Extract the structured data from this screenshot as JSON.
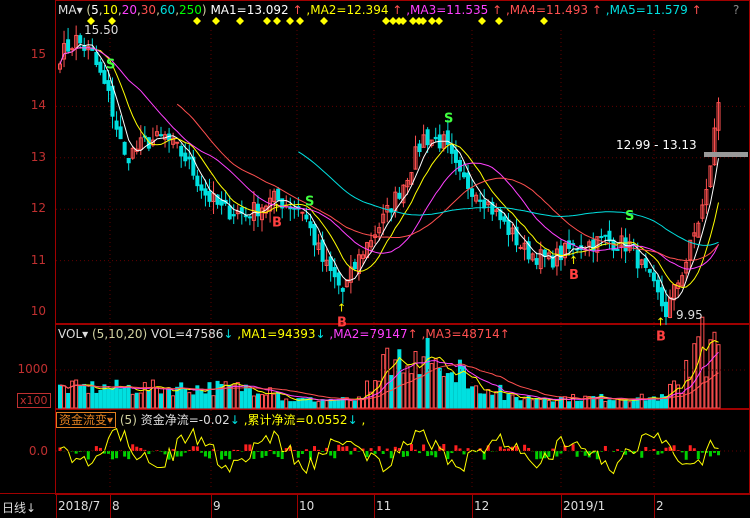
{
  "main": {
    "indicator": "MA",
    "params": [
      "5",
      "10",
      "20",
      "30",
      "60",
      "250"
    ],
    "param_colors": [
      "#ffffff",
      "#ffff00",
      "#ff40ff",
      "#ff5050",
      "#00e0e0",
      "#00ff00"
    ],
    "ma": [
      {
        "label": "MA1=13.092",
        "color": "#ffffff"
      },
      {
        "label": ",MA2=12.394",
        "color": "#ffff00"
      },
      {
        "label": ",MA3=11.535",
        "color": "#ff40ff"
      },
      {
        "label": ",MA4=11.493",
        "color": "#ff5050"
      },
      {
        "label": ",MA5=11.579",
        "color": "#00e0e0"
      }
    ],
    "help": "?",
    "y_ticks": [
      "15",
      "14",
      "13",
      "12",
      "11",
      "10"
    ],
    "high_label": "15.50",
    "low_label": "9.95",
    "range_label": "12.99 - 13.13",
    "signals": [
      {
        "t": "S",
        "x": 110
      },
      {
        "t": "B",
        "x": 276
      },
      {
        "t": "S",
        "x": 309
      },
      {
        "t": "B",
        "x": 341
      },
      {
        "t": "S",
        "x": 448
      },
      {
        "t": "B",
        "x": 573
      },
      {
        "t": "S",
        "x": 629
      },
      {
        "t": "B",
        "x": 660
      }
    ],
    "price_path": [
      [
        0,
        15.0
      ],
      [
        4,
        15.3
      ],
      [
        8,
        15.0
      ],
      [
        12,
        14.2
      ],
      [
        16,
        13.0
      ],
      [
        21,
        13.3
      ],
      [
        26,
        13.4
      ],
      [
        31,
        13.0
      ],
      [
        36,
        12.3
      ],
      [
        40,
        12.0
      ],
      [
        46,
        11.9
      ],
      [
        53,
        12.2
      ],
      [
        60,
        12.0
      ],
      [
        65,
        11.0
      ],
      [
        70,
        10.4
      ],
      [
        75,
        11.2
      ],
      [
        80,
        11.8
      ],
      [
        85,
        12.5
      ],
      [
        90,
        13.4
      ],
      [
        95,
        13.3
      ],
      [
        99,
        12.6
      ],
      [
        104,
        12.3
      ],
      [
        110,
        11.7
      ],
      [
        115,
        11.2
      ],
      [
        121,
        11.0
      ],
      [
        128,
        11.3
      ],
      [
        135,
        11.4
      ],
      [
        141,
        11.3
      ],
      [
        146,
        10.6
      ],
      [
        150,
        10.0
      ],
      [
        155,
        11.0
      ],
      [
        160,
        12.3
      ],
      [
        163,
        14.1
      ]
    ]
  },
  "volume": {
    "indicator": "VOL",
    "params": "(5,10,20)",
    "vol": "VOL=47586",
    "ma1": ",MA1=94393",
    "ma2": ",MA2=79147",
    "ma3": ",MA3=48714",
    "y_tick": "1000",
    "unit": "x100"
  },
  "fund": {
    "indicator": "资金流变",
    "params": "(5)",
    "net": "资金净流=-0.02",
    "cum": ",累计净流=0.0552",
    "tail": ",",
    "y_tick": "0.0"
  },
  "dates": {
    "period": "日线",
    "labels": [
      "2018/7",
      "8",
      "9",
      "10",
      "11",
      "12",
      "2019/1",
      "2"
    ]
  },
  "colors": {
    "up": "#ff5050",
    "down": "#00e0e0",
    "grid": "#a00000"
  }
}
